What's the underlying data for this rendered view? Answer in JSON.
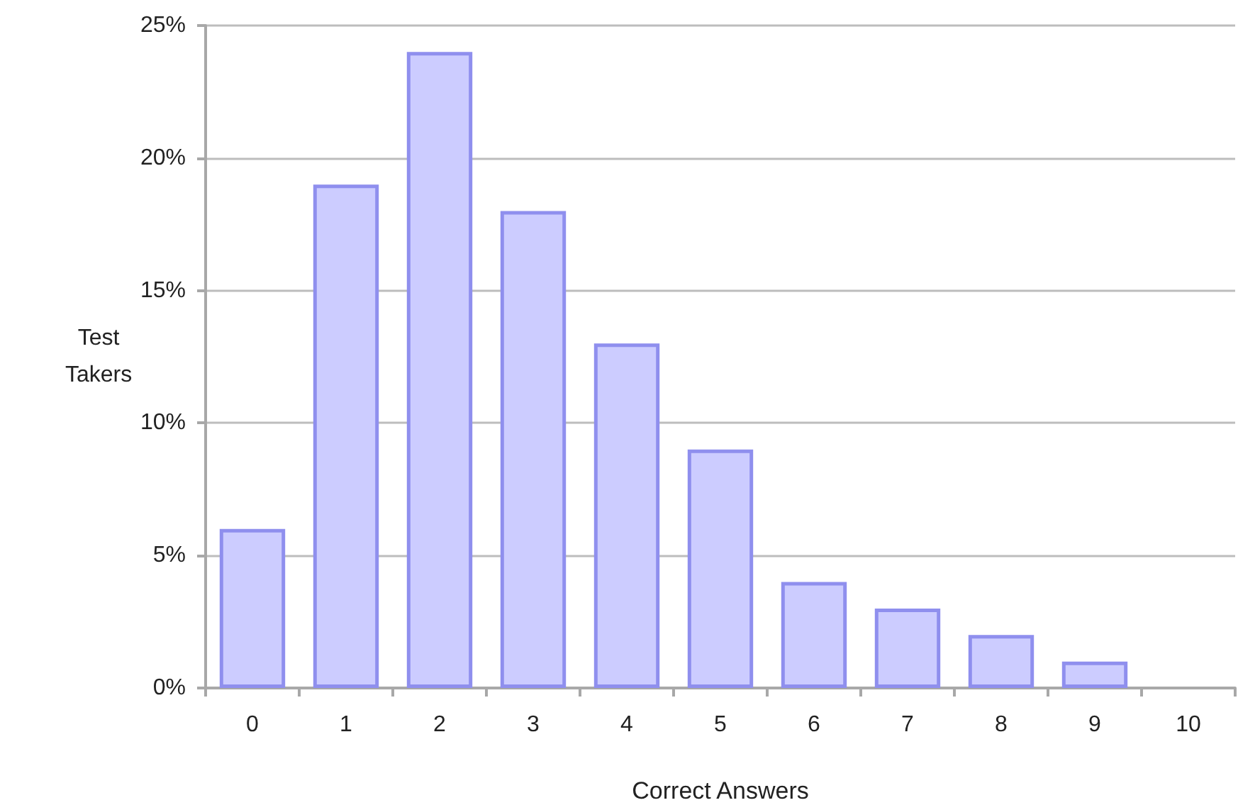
{
  "chart_data": {
    "type": "bar",
    "xlabel": "Correct Answers",
    "ylabel": "Test Takers",
    "categories": [
      "0",
      "1",
      "2",
      "3",
      "4",
      "5",
      "6",
      "7",
      "8",
      "9",
      "10"
    ],
    "values": [
      6,
      19,
      24,
      18,
      13,
      9,
      4,
      3,
      2,
      1,
      0
    ],
    "color": "#ccccff",
    "ylim": [
      0,
      25
    ],
    "yticks": [
      {
        "value": 0,
        "label": "0%"
      },
      {
        "value": 5,
        "label": "5%"
      },
      {
        "value": 10,
        "label": "10%"
      },
      {
        "value": 15,
        "label": "15%"
      },
      {
        "value": 20,
        "label": "20%"
      },
      {
        "value": 25,
        "label": "25%"
      }
    ],
    "grid": "y"
  }
}
